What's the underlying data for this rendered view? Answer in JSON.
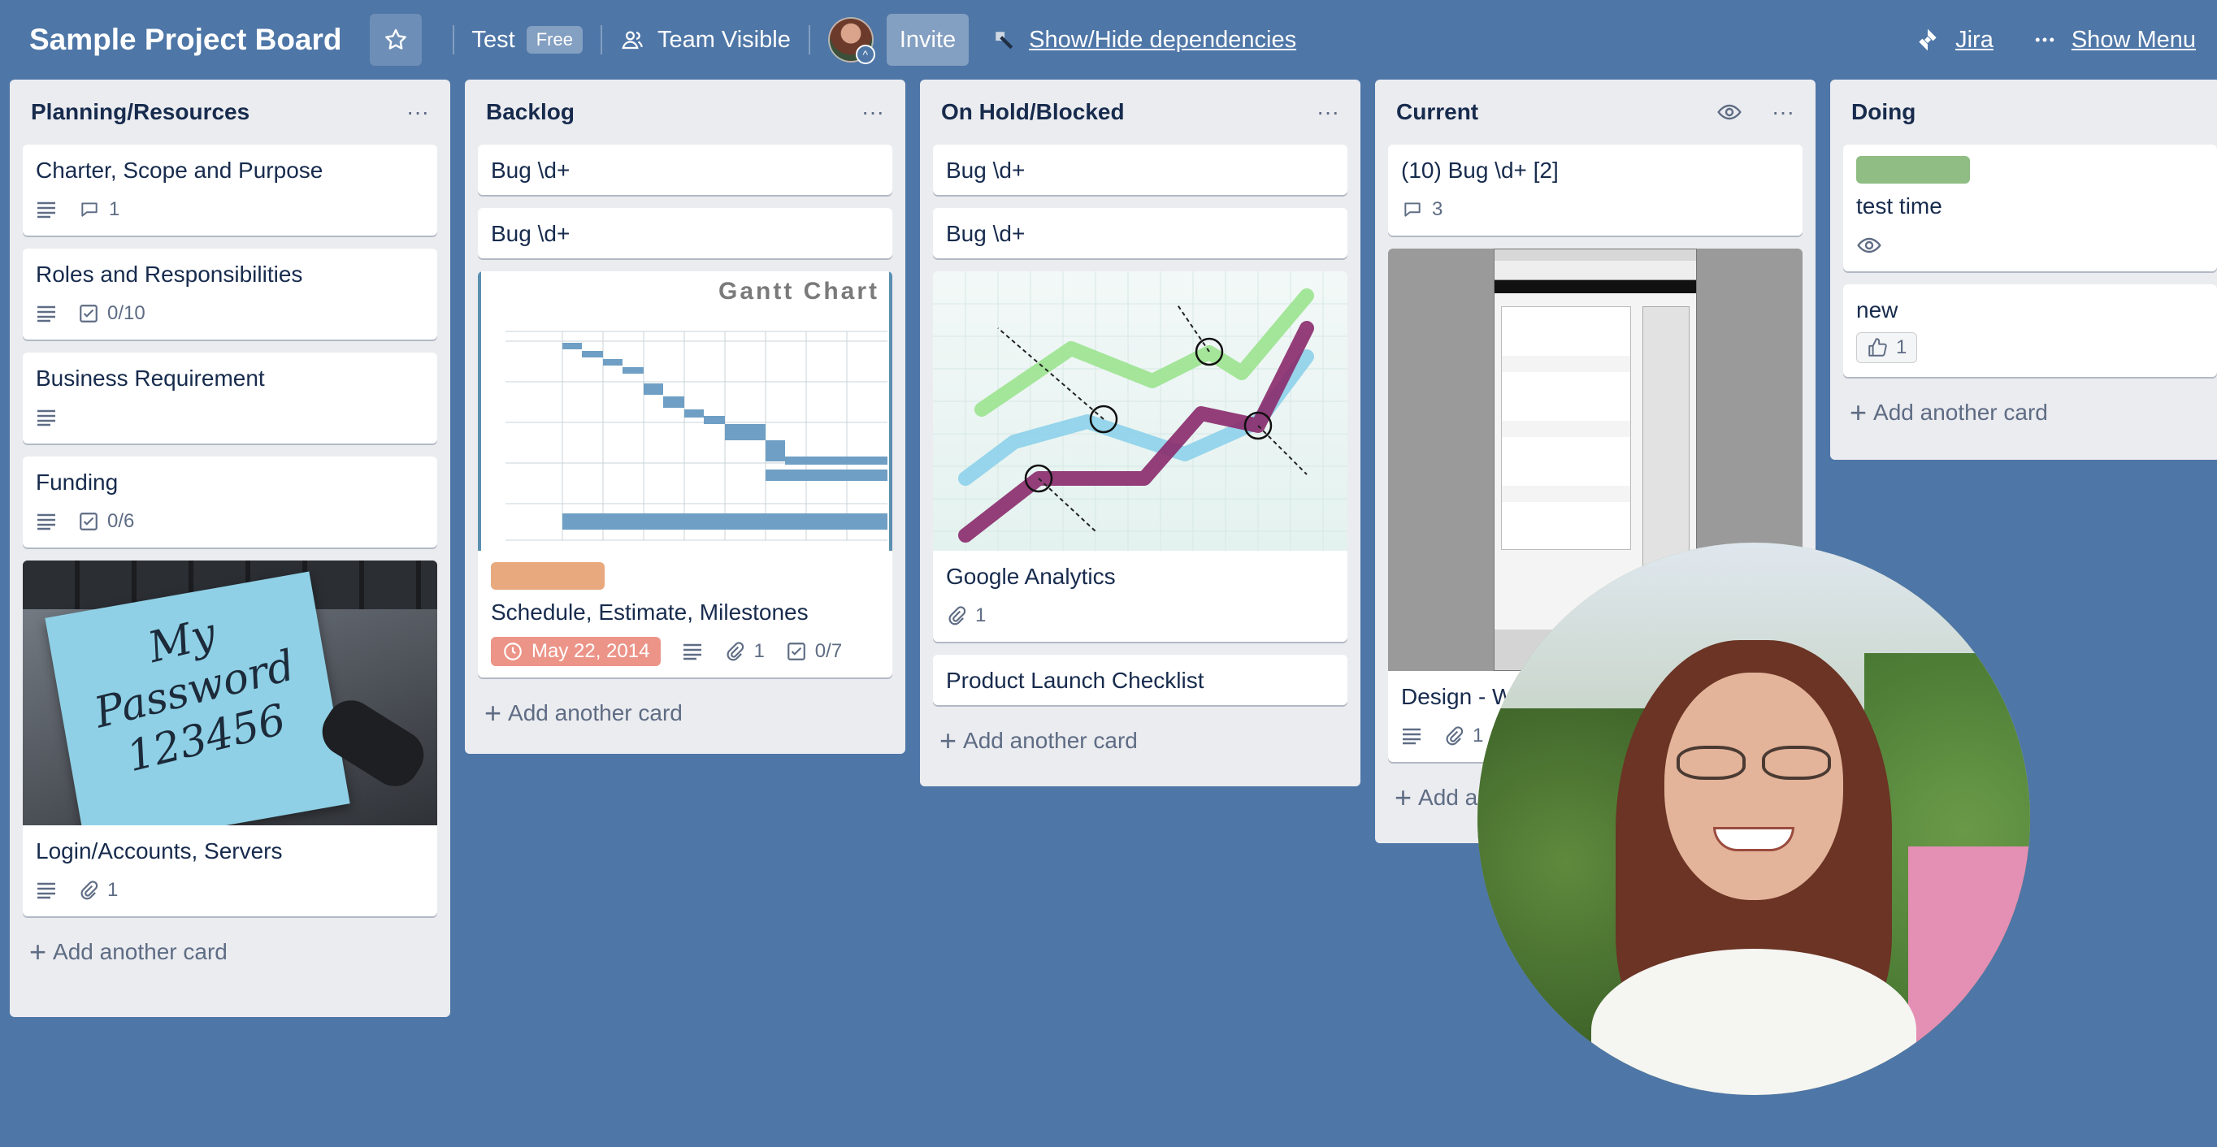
{
  "topbar": {
    "board_title": "Sample Project Board",
    "workspace": "Test",
    "plan_badge": "Free",
    "visibility": "Team Visible",
    "invite": "Invite",
    "dependencies": "Show/Hide dependencies",
    "jira": "Jira",
    "show_menu": "Show Menu"
  },
  "lists": [
    {
      "title": "Planning/Resources",
      "add_card": "Add another card",
      "cards": [
        {
          "title": "Charter, Scope and Purpose",
          "comments": "1"
        },
        {
          "title": "Roles and Responsibilities",
          "checklist": "0/10"
        },
        {
          "title": "Business Requirement"
        },
        {
          "title": "Funding",
          "checklist": "0/6"
        },
        {
          "title": "Login/Accounts, Servers",
          "attachments": "1",
          "cover_text": "My Password 123456"
        }
      ]
    },
    {
      "title": "Backlog",
      "add_card": "Add another card",
      "cards": [
        {
          "title": "Bug \\d+"
        },
        {
          "title": "Bug \\d+"
        },
        {
          "title": "Schedule, Estimate, Milestones",
          "cover_text": "Gantt Chart",
          "due": "May 22, 2014",
          "attachments": "1",
          "checklist": "0/7",
          "label_color": "#e8a97e"
        }
      ]
    },
    {
      "title": "On Hold/Blocked",
      "add_card": "Add another card",
      "cards": [
        {
          "title": "Bug \\d+"
        },
        {
          "title": "Bug \\d+"
        },
        {
          "title": "Google Analytics",
          "attachments": "1"
        },
        {
          "title": "Product Launch Checklist"
        }
      ]
    },
    {
      "title": "Current",
      "add_card": "Add a",
      "cards": [
        {
          "title": "(10) Bug \\d+ [2]",
          "comments": "3"
        },
        {
          "title": "Design - W",
          "attachments": "1"
        }
      ]
    },
    {
      "title": "Doing",
      "add_card": "Add another card",
      "cards": [
        {
          "title": "test time",
          "label_color": "#8fbd84"
        },
        {
          "title": "new",
          "votes": "1"
        }
      ]
    }
  ],
  "colors": {
    "board_bg": "#4e76a7",
    "list_bg": "#ebecf0",
    "due_bg": "#ec9488"
  }
}
